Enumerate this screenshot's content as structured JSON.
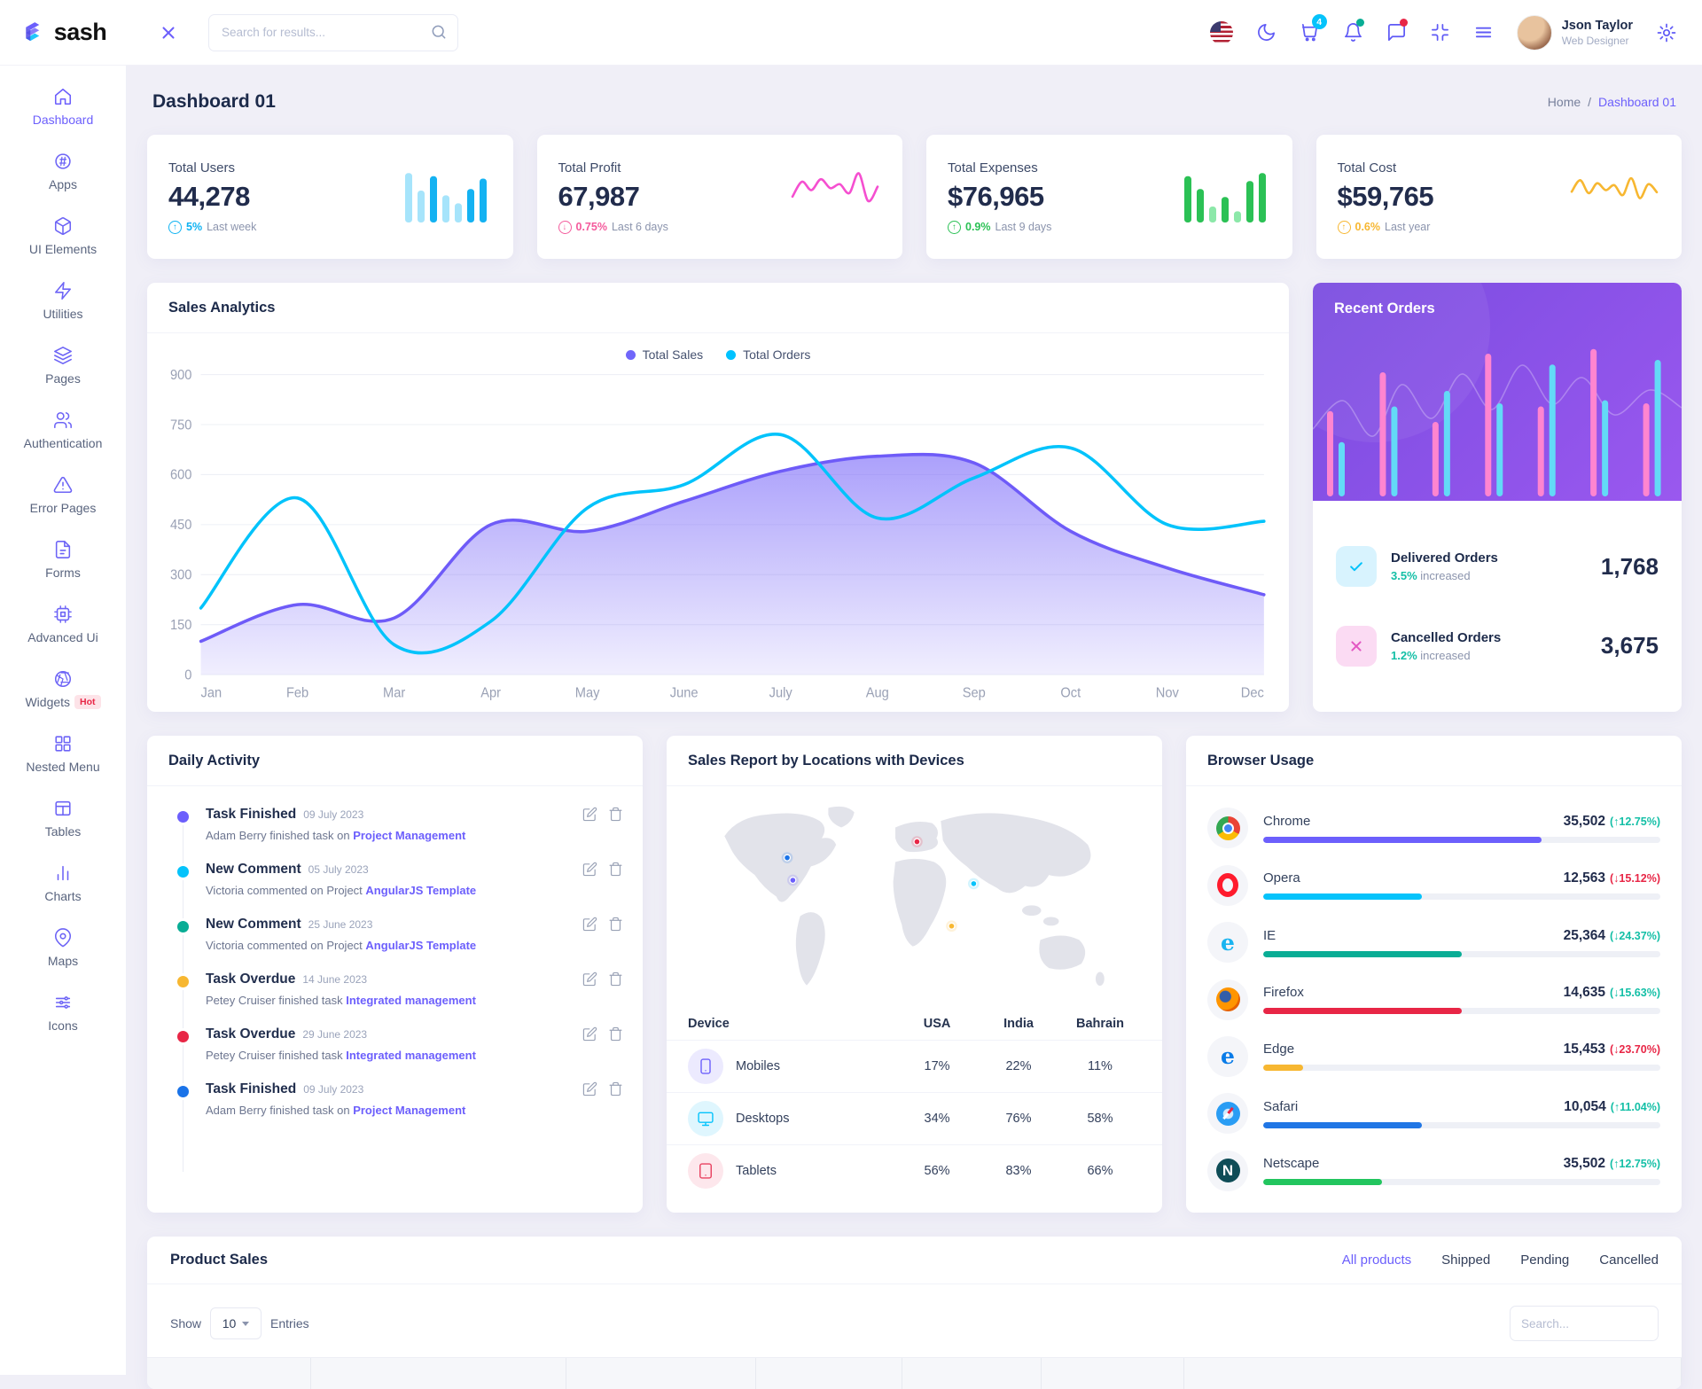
{
  "brand": {
    "name": "sash"
  },
  "navbar": {
    "search_placeholder": "Search for results...",
    "cart_badge": "4",
    "user": {
      "name": "Json Taylor",
      "role": "Web Designer"
    }
  },
  "sidebar": {
    "items": [
      {
        "label": "Dashboard",
        "icon": "home-icon",
        "active": true
      },
      {
        "label": "Apps",
        "icon": "apps-icon"
      },
      {
        "label": "UI Elements",
        "icon": "box-icon"
      },
      {
        "label": "Utilities",
        "icon": "zap-icon"
      },
      {
        "label": "Pages",
        "icon": "layers-icon"
      },
      {
        "label": "Authentication",
        "icon": "users-icon"
      },
      {
        "label": "Error Pages",
        "icon": "alert-triangle-icon"
      },
      {
        "label": "Forms",
        "icon": "file-text-icon"
      },
      {
        "label": "Advanced Ui",
        "icon": "cpu-icon"
      },
      {
        "label": "Widgets",
        "icon": "aperture-icon",
        "badge": "Hot"
      },
      {
        "label": "Nested Menu",
        "icon": "grid-icon"
      },
      {
        "label": "Tables",
        "icon": "table-icon"
      },
      {
        "label": "Charts",
        "icon": "bar-chart-icon"
      },
      {
        "label": "Maps",
        "icon": "map-pin-icon"
      },
      {
        "label": "Icons",
        "icon": "sliders-icon"
      }
    ]
  },
  "page": {
    "title": "Dashboard 01",
    "breadcrumb": {
      "home": "Home",
      "separator": "/",
      "current": "Dashboard 01"
    }
  },
  "stats": [
    {
      "label": "Total Users",
      "value": "44,278",
      "delta": "5%",
      "period": "Last week",
      "dir": "up",
      "color": "#0db2f2",
      "spark": {
        "type": "bars",
        "heights": [
          62,
          40,
          58,
          34,
          24,
          42,
          55
        ],
        "tones": [
          "light",
          "light",
          "dark",
          "light",
          "light",
          "dark",
          "dark"
        ],
        "light": "#a6e4fb",
        "dark": "#14b2f2"
      }
    },
    {
      "label": "Total Profit",
      "value": "67,987",
      "delta": "0.75%",
      "period": "Last 6 days",
      "dir": "down",
      "color": "#f45a9c",
      "spark": {
        "type": "line",
        "color": "#f54fd0",
        "points": [
          55,
          25,
          42,
          20,
          38,
          30,
          48,
          8,
          64,
          35
        ]
      }
    },
    {
      "label": "Total Expenses",
      "value": "$76,965",
      "delta": "0.9%",
      "period": "Last 9 days",
      "dir": "up",
      "color": "#2bc155",
      "spark": {
        "type": "bars",
        "heights": [
          58,
          42,
          20,
          32,
          14,
          52,
          62
        ],
        "tones": [
          "dark",
          "dark",
          "light",
          "dark",
          "light",
          "dark",
          "dark"
        ],
        "light": "#8ce8a9",
        "dark": "#2bc155"
      }
    },
    {
      "label": "Total Cost",
      "value": "$59,765",
      "delta": "0.6%",
      "period": "Last year",
      "dir": "up",
      "color": "#f7b731",
      "spark": {
        "type": "line",
        "color": "#f7b731",
        "points": [
          45,
          22,
          48,
          28,
          42,
          32,
          52,
          18,
          58,
          30,
          46
        ]
      }
    }
  ],
  "sales_analytics": {
    "title": "Sales Analytics",
    "legend": [
      {
        "label": "Total Sales",
        "color": "#7066fa"
      },
      {
        "label": "Total Orders",
        "color": "#00c2ff"
      }
    ],
    "chart": {
      "type": "area-line",
      "y_ticks": [
        0,
        150,
        300,
        450,
        600,
        750,
        900
      ],
      "categories": [
        "Jan",
        "Feb",
        "Mar",
        "Apr",
        "May",
        "June",
        "July",
        "Aug",
        "Sep",
        "Oct",
        "Nov",
        "Dec"
      ],
      "series": [
        {
          "name": "Total Sales",
          "color": "#6e5bf8",
          "fill": true,
          "values": [
            100,
            210,
            170,
            450,
            430,
            520,
            610,
            655,
            635,
            430,
            320,
            240
          ]
        },
        {
          "name": "Total Orders",
          "color": "#00c3fb",
          "fill": false,
          "values": [
            200,
            530,
            90,
            160,
            500,
            570,
            720,
            470,
            590,
            680,
            450,
            460
          ]
        }
      ]
    }
  },
  "recent_orders": {
    "title": "Recent Orders",
    "bar_colors": {
      "pink": "#ff85d0",
      "cyan": "#63daf7"
    },
    "bar_pairs": [
      [
        55,
        35
      ],
      [
        80,
        58
      ],
      [
        48,
        68
      ],
      [
        92,
        60
      ],
      [
        58,
        85
      ],
      [
        95,
        62
      ],
      [
        60,
        88
      ]
    ],
    "items": [
      {
        "label": "Delivered Orders",
        "change": "3.5%",
        "change_suffix": "increased",
        "change_color": "#13bfa6",
        "value": "1,768",
        "icon": "check-icon",
        "icon_color": "#05c3fb",
        "icon_bg": "#d8f3fe"
      },
      {
        "label": "Cancelled Orders",
        "change": "1.2%",
        "change_suffix": "increased",
        "change_color": "#13bfa6",
        "value": "3,675",
        "icon": "x-icon",
        "icon_color": "#e357c3",
        "icon_bg": "#fbdbf3"
      }
    ]
  },
  "daily_activity": {
    "title": "Daily Activity",
    "items": [
      {
        "title": "Task Finished",
        "date": "09 July 2023",
        "text": "Adam Berry finished task on",
        "link": "Project Management",
        "color": "#6c5ffc"
      },
      {
        "title": "New Comment",
        "date": "05 July 2023",
        "text": "Victoria commented on Project",
        "link": "AngularJS Template",
        "color": "#05c3fb"
      },
      {
        "title": "New Comment",
        "date": "25 June 2023",
        "text": "Victoria commented on Project",
        "link": "AngularJS Template",
        "color": "#09ad95"
      },
      {
        "title": "Task Overdue",
        "date": "14 June 2023",
        "text": "Petey Cruiser finished task",
        "link": "Integrated management",
        "color": "#f7b731"
      },
      {
        "title": "Task Overdue",
        "date": "29 June 2023",
        "text": "Petey Cruiser finished task",
        "link": "Integrated management",
        "color": "#e82646"
      },
      {
        "title": "Task Finished",
        "date": "09 July 2023",
        "text": "Adam Berry finished task on",
        "link": "Project Management",
        "color": "#1a73e8"
      }
    ]
  },
  "sales_report": {
    "title": "Sales Report by Locations with Devices",
    "columns": [
      "Device",
      "USA",
      "India",
      "Bahrain"
    ],
    "rows": [
      {
        "device": "Mobiles",
        "icon": "smartphone-icon",
        "color": "#6c5ffc",
        "bg": "#eceafe",
        "usa": "17%",
        "india": "22%",
        "bahrain": "11%"
      },
      {
        "device": "Desktops",
        "icon": "monitor-icon",
        "color": "#05c3fb",
        "bg": "#dff6fe",
        "usa": "34%",
        "india": "76%",
        "bahrain": "58%"
      },
      {
        "device": "Tablets",
        "icon": "tablet-icon",
        "color": "#e8405f",
        "bg": "#fde7ec",
        "usa": "56%",
        "india": "83%",
        "bahrain": "66%"
      }
    ],
    "map_markers": [
      {
        "color": "#1a73e8",
        "x": 205,
        "y": 140
      },
      {
        "color": "#6c5ffc",
        "x": 218,
        "y": 192
      },
      {
        "color": "#e82646",
        "x": 505,
        "y": 103
      },
      {
        "color": "#05c3fb",
        "x": 636,
        "y": 200
      },
      {
        "color": "#f7b731",
        "x": 585,
        "y": 298
      }
    ]
  },
  "browser_usage": {
    "title": "Browser Usage",
    "items": [
      {
        "name": "Chrome",
        "logo": "chrome",
        "value": "35,502",
        "change": "12.75%",
        "dir": "up",
        "change_color": "#13bfa6",
        "bar_color": "#6c5ffc",
        "pct": 70
      },
      {
        "name": "Opera",
        "logo": "opera",
        "value": "12,563",
        "change": "15.12%",
        "dir": "down",
        "change_color": "#e82646",
        "bar_color": "#05c3fb",
        "pct": 40
      },
      {
        "name": "IE",
        "logo": "ie",
        "value": "25,364",
        "change": "24.37%",
        "dir": "down",
        "change_color": "#13bfa6",
        "bar_color": "#09ad95",
        "pct": 50
      },
      {
        "name": "Firefox",
        "logo": "firefox",
        "value": "14,635",
        "change": "15.63%",
        "dir": "down",
        "change_color": "#13bfa6",
        "bar_color": "#e82646",
        "pct": 50
      },
      {
        "name": "Edge",
        "logo": "edge",
        "value": "15,453",
        "change": "23.70%",
        "dir": "down",
        "change_color": "#e82646",
        "bar_color": "#f7b731",
        "pct": 10
      },
      {
        "name": "Safari",
        "logo": "safari",
        "value": "10,054",
        "change": "11.04%",
        "dir": "up",
        "change_color": "#13bfa6",
        "bar_color": "#2076e5",
        "pct": 40
      },
      {
        "name": "Netscape",
        "logo": "netscape",
        "value": "35,502",
        "change": "12.75%",
        "dir": "up",
        "change_color": "#13bfa6",
        "bar_color": "#22c55e",
        "pct": 30
      }
    ]
  },
  "product_sales": {
    "title": "Product Sales",
    "tabs": [
      {
        "label": "All products",
        "active": true
      },
      {
        "label": "Shipped"
      },
      {
        "label": "Pending"
      },
      {
        "label": "Cancelled"
      }
    ],
    "show_label": "Show",
    "page_size": "10",
    "entries_label": "Entries",
    "search_placeholder": "Search..."
  }
}
